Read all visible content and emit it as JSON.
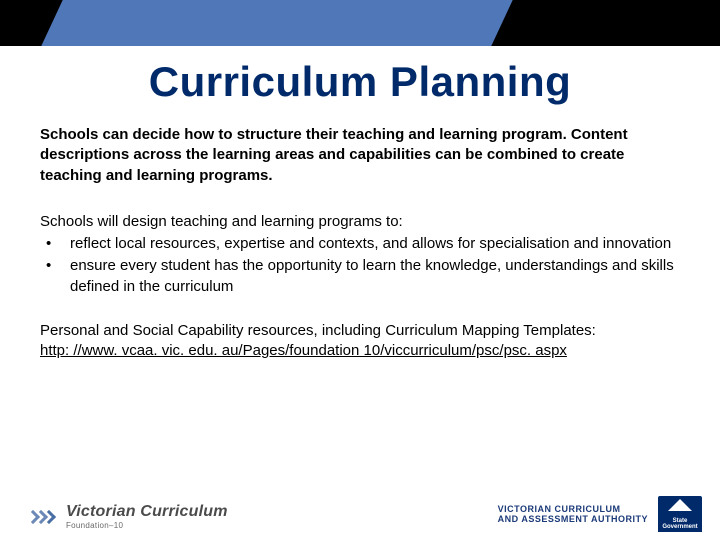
{
  "colors": {
    "header_black": "#000000",
    "header_blue": "#5077b8",
    "title_navy": "#012a6b",
    "text_black": "#000000",
    "link_black": "#000000",
    "logo_gray": "#4b4b4b",
    "logo_chev_light": "#6b88b6",
    "logo_chev_dark": "#4a6fa5",
    "vcaa_navy": "#1b3a78",
    "vic_box": "#012a6b",
    "background": "#ffffff"
  },
  "typography": {
    "title_fontsize": 42,
    "body_fontsize": 15,
    "logo_main_fontsize": 16,
    "logo_sub_fontsize": 8,
    "vcaa_fontsize": 9
  },
  "title": "Curriculum Planning",
  "intro": "Schools can decide how to structure their teaching and learning program. Content descriptions across the learning areas and capabilities can be combined to create teaching and learning programs.",
  "lead": "Schools will design teaching and learning programs to:",
  "bullets": [
    "reflect local resources, expertise and contexts, and allows for specialisation and innovation",
    "ensure every student has the opportunity to learn the knowledge, understandings and skills defined in the curriculum"
  ],
  "resources": "Personal and Social Capability resources, including Curriculum Mapping Templates:",
  "link": "http: //www. vcaa. vic. edu. au/Pages/foundation 10/viccurriculum/psc/psc. aspx",
  "footer": {
    "logo_main": "Victorian Curriculum",
    "logo_sub": "Foundation–10",
    "vcaa_line1": "VICTORIAN CURRICULUM",
    "vcaa_line2": "AND ASSESSMENT AUTHORITY",
    "vic_label": "State Government"
  }
}
